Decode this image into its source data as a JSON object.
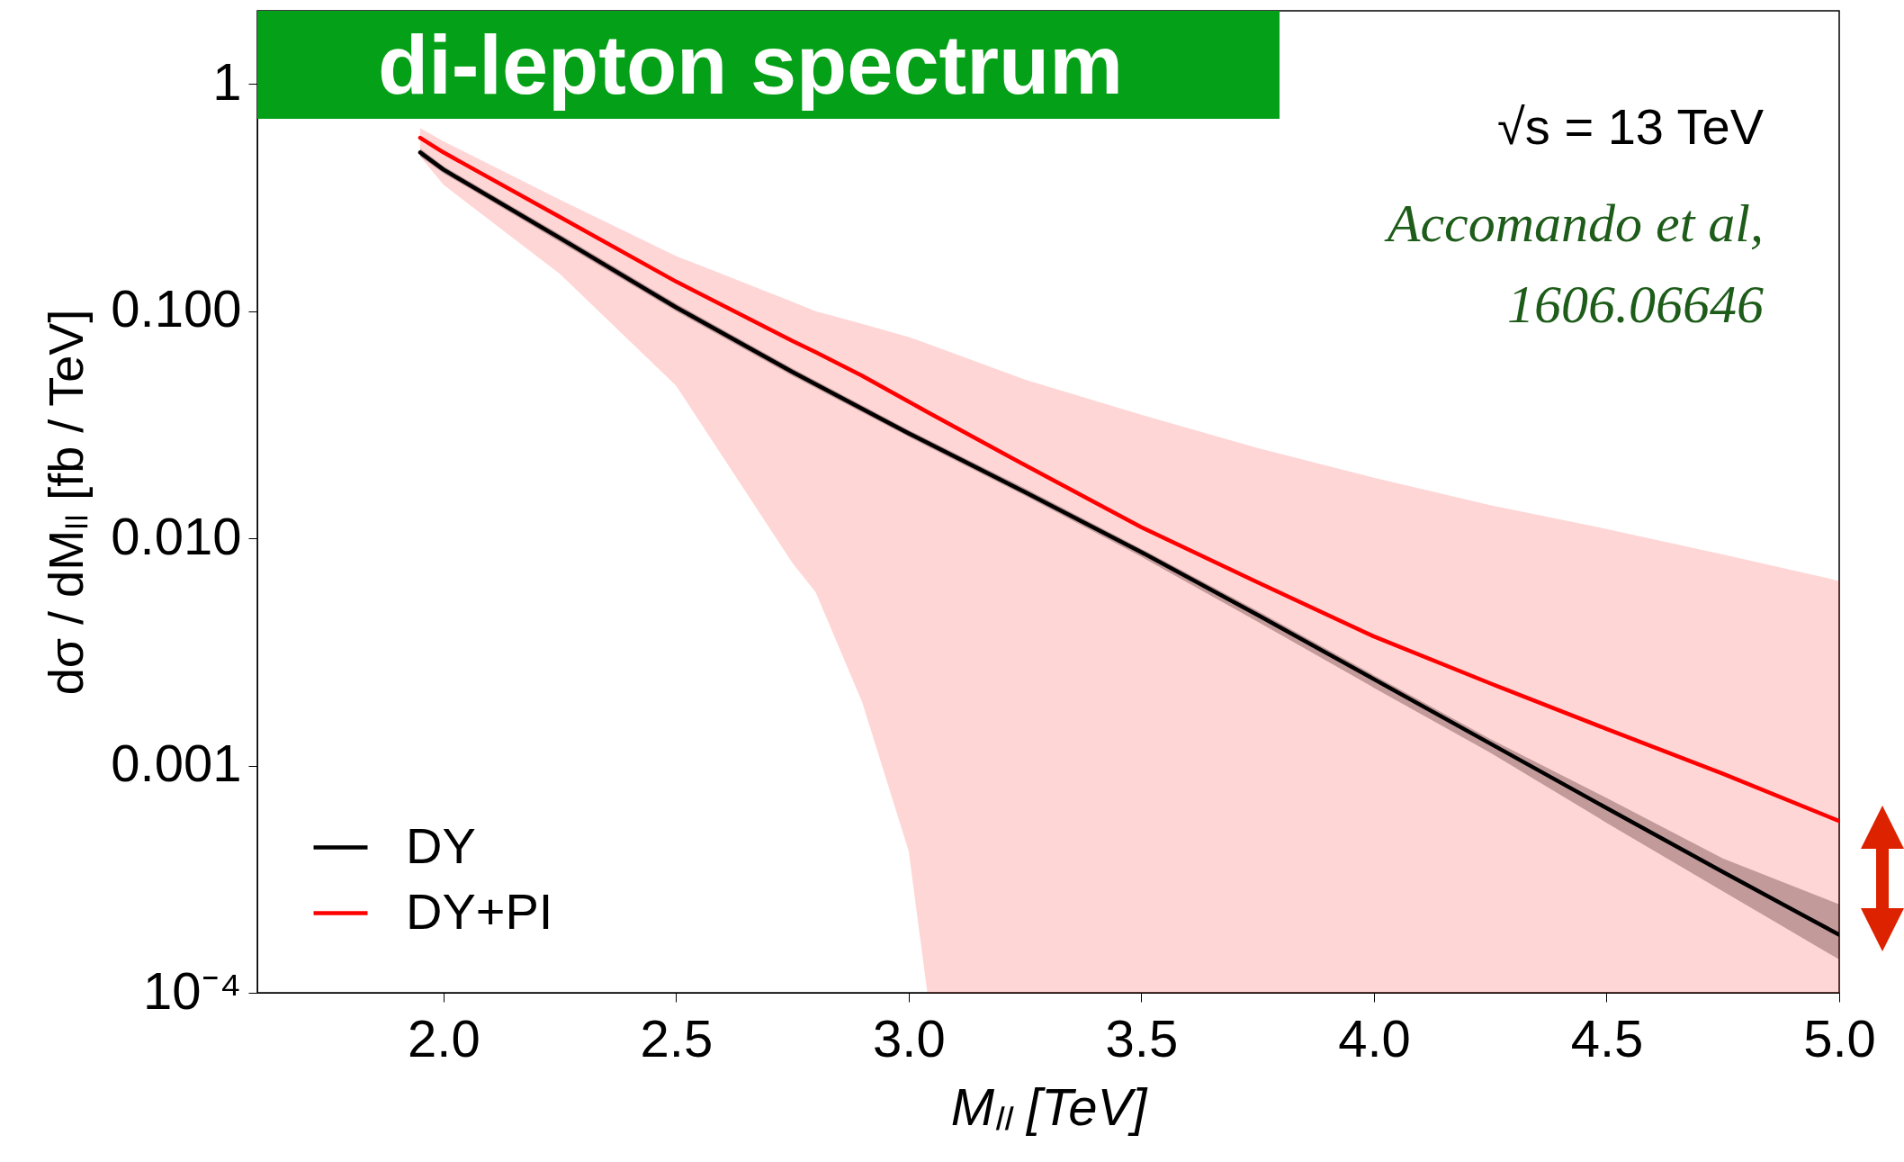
{
  "chart_data": {
    "type": "line",
    "title": "di-lepton spectrum",
    "xlabel": "Mₗₗ  [TeV]",
    "ylabel": "dσ / dMₗₗ [fb / TeV]",
    "annotations": [
      "√s  = 13 TeV",
      "Accomando et al,\n1606.06646"
    ],
    "xlim": [
      1.6,
      5.0
    ],
    "xticks": [
      {
        "value": 2,
        "label": "2.0"
      },
      2.5,
      {
        "value": 3,
        "label": "3.0"
      },
      3.5,
      {
        "value": 4,
        "label": "4.0"
      },
      4.5,
      {
        "value": 5,
        "label": "5.0"
      }
    ],
    "ylim": [
      0.0001,
      2.1
    ],
    "yticks": [
      {
        "value": 0.0001,
        "label": "10⁻⁴"
      },
      0.001,
      {
        "value": 0.01,
        "label": "0.010"
      },
      {
        "value": 0.1,
        "label": "0.100"
      },
      1
    ],
    "log": true,
    "grid": false,
    "legend": "bottom left",
    "line_style": "solid",
    "marker": "none",
    "series": [
      {
        "name": "DY",
        "color": "#000000",
        "x": [
          1.95,
          2.0,
          2.25,
          2.5,
          2.75,
          3.0,
          3.25,
          3.5,
          3.75,
          4.0,
          4.25,
          4.5,
          4.75,
          5.0
        ],
        "values": [
          0.5,
          0.42,
          0.21,
          0.104,
          0.054,
          0.029,
          0.016,
          0.0087,
          0.0046,
          0.0024,
          0.00125,
          0.00065,
          0.00034,
          0.00018
        ],
        "upper": [
          0.52,
          0.435,
          0.218,
          0.108,
          0.056,
          0.03,
          0.0166,
          0.009,
          0.0048,
          0.0025,
          0.00131,
          0.00072,
          0.00039,
          0.000245
        ],
        "lower": [
          0.48,
          0.405,
          0.202,
          0.1,
          0.052,
          0.028,
          0.0154,
          0.0083,
          0.0043,
          0.0022,
          0.00114,
          0.00056,
          0.00028,
          0.00014
        ]
      },
      {
        "name": "DY+PI",
        "color": "#ff0000",
        "x": [
          1.95,
          2.0,
          2.25,
          2.5,
          2.75,
          2.8,
          2.9,
          3.0,
          3.04,
          3.25,
          3.5,
          3.75,
          4.0,
          4.25,
          4.5,
          4.75,
          5.0
        ],
        "values": [
          0.58,
          0.5,
          0.26,
          0.135,
          0.074,
          0.066,
          0.052,
          0.04,
          0.036,
          0.021,
          0.0112,
          0.0064,
          0.0037,
          0.0023,
          0.00145,
          0.00092,
          0.00057
        ],
        "upper": [
          0.64,
          0.56,
          0.31,
          0.175,
          0.11,
          0.1,
          0.088,
          0.077,
          0.072,
          0.05,
          0.035,
          0.025,
          0.0185,
          0.014,
          0.011,
          0.0085,
          0.0065
        ],
        "lower": [
          0.48,
          0.36,
          0.146,
          0.047,
          0.0078,
          0.0058,
          0.0019,
          0.00042,
          0.0001,
          0.0001,
          0.0001,
          0.0001,
          0.0001,
          0.0001,
          0.0001,
          0.0001,
          0.0001
        ]
      }
    ]
  }
}
